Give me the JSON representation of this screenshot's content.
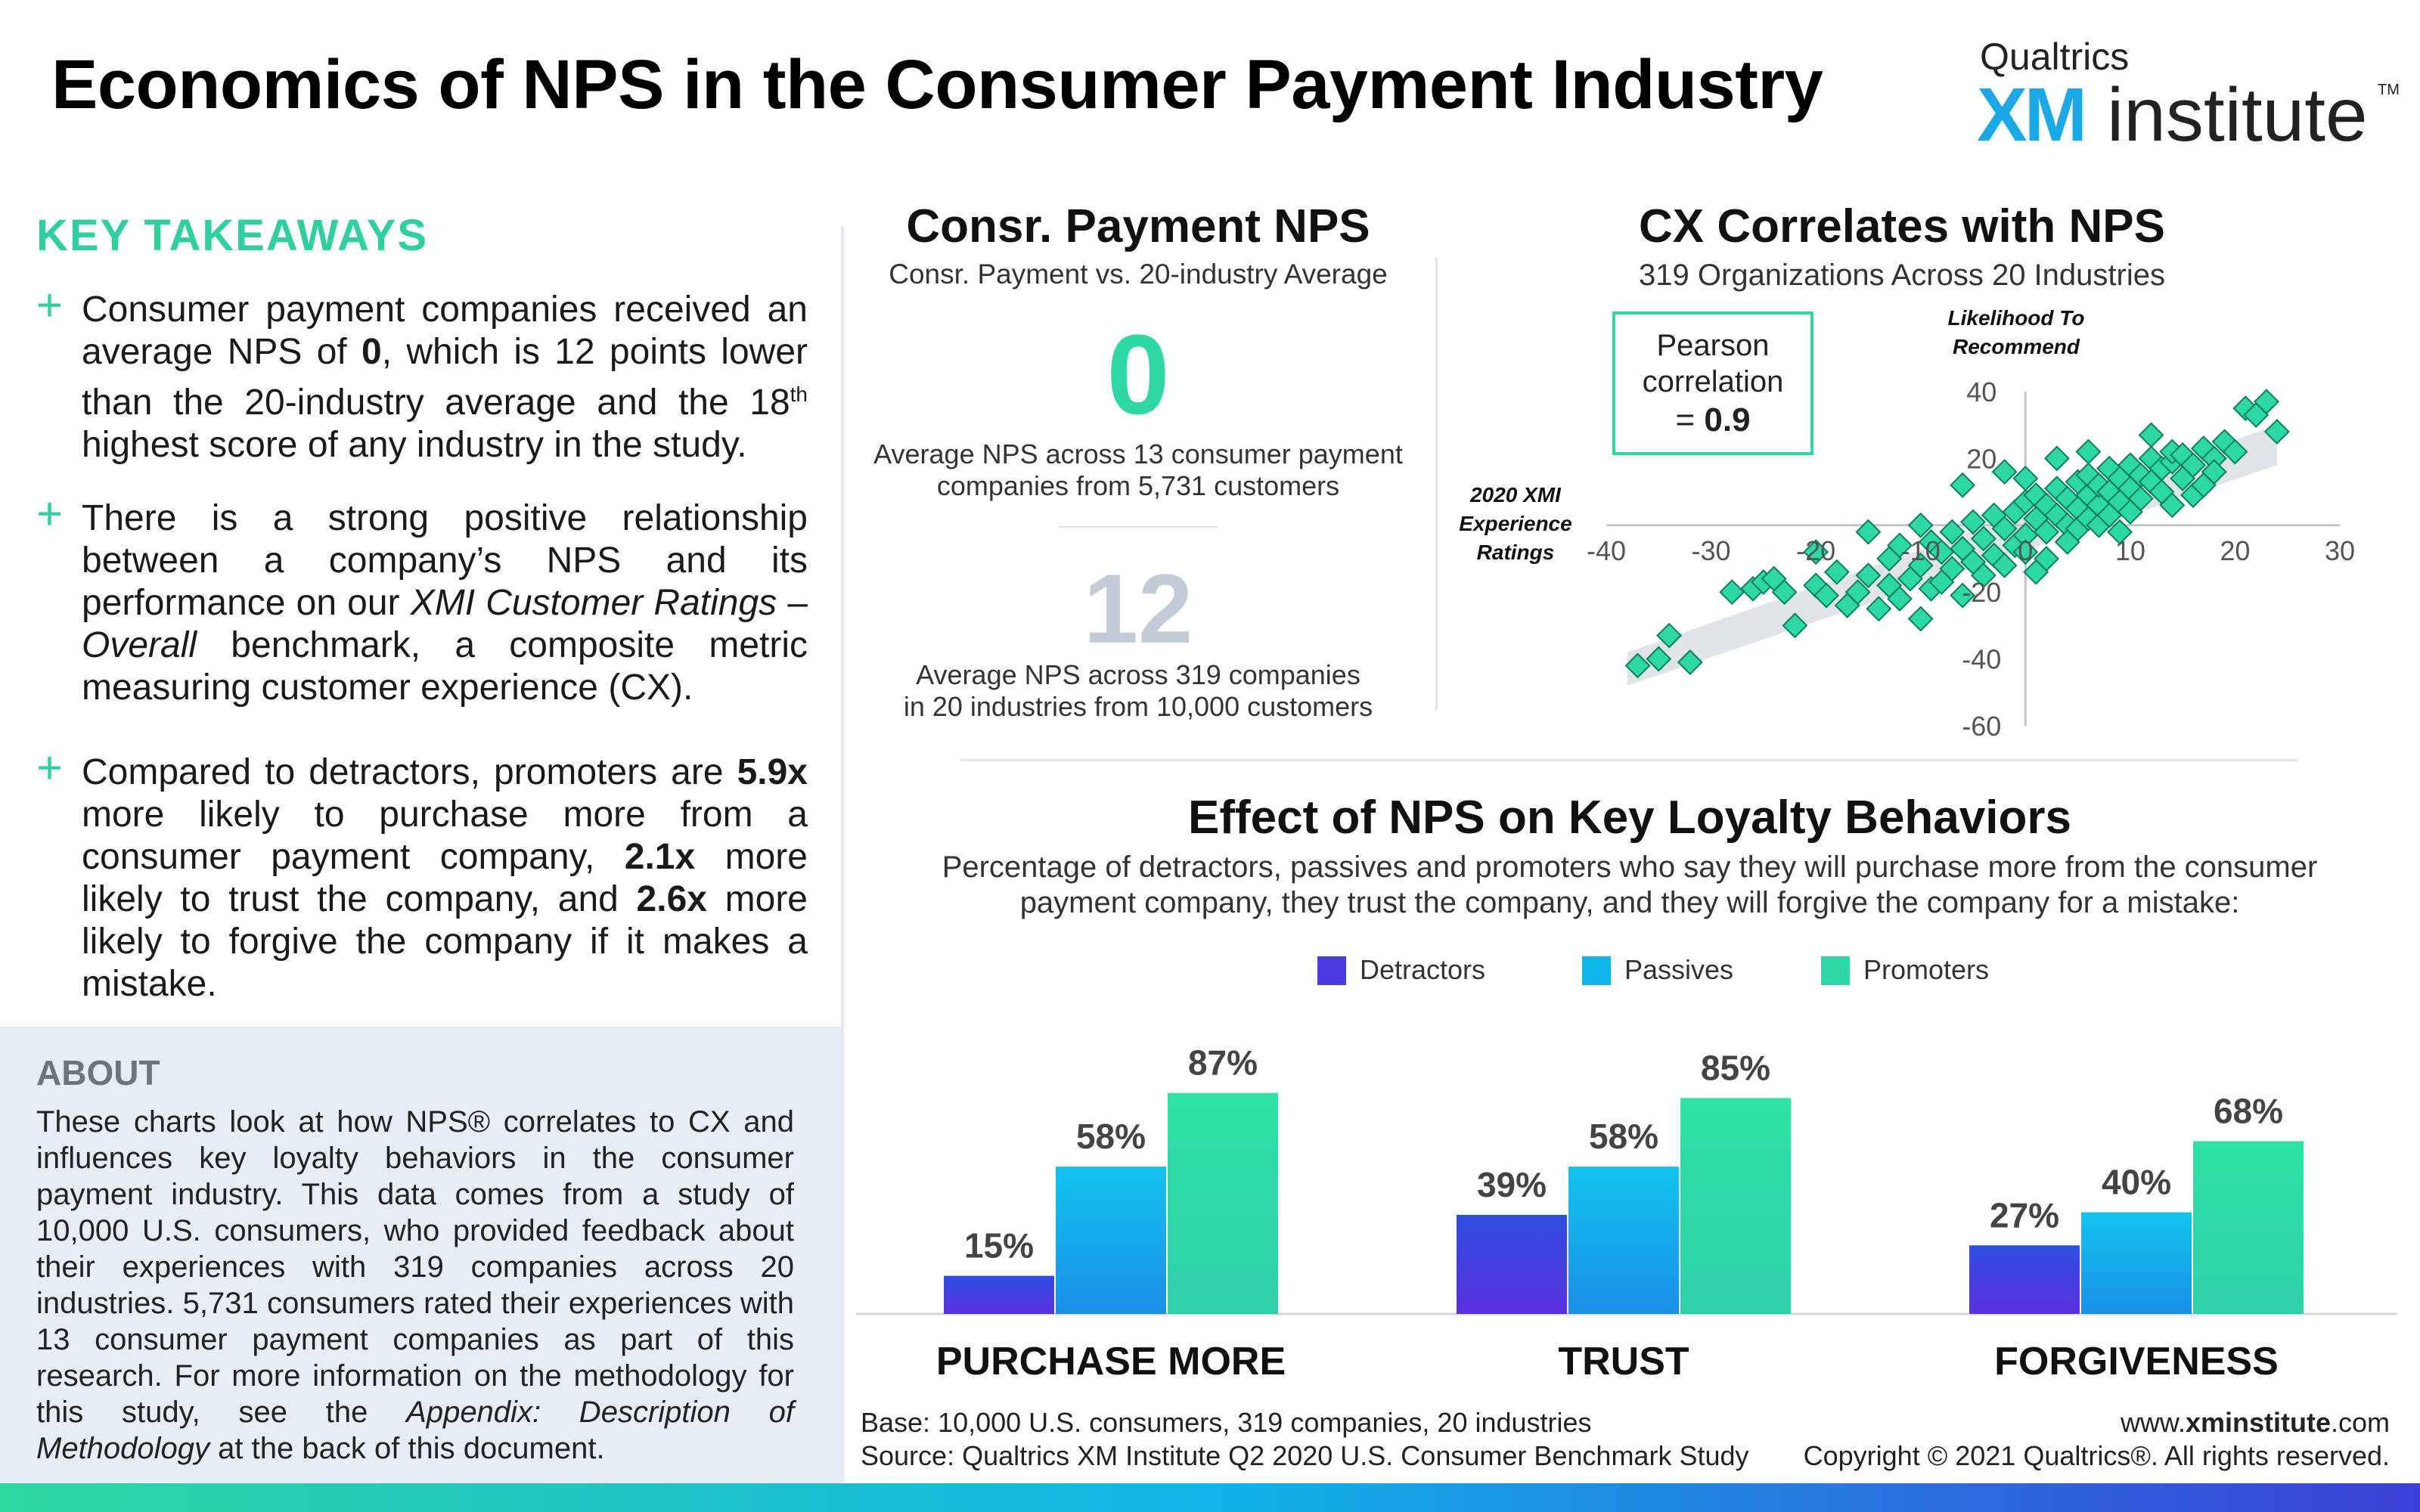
{
  "title": "Economics of NPS in the Consumer Payment Industry",
  "logo": {
    "company": "Qualtrics",
    "brand_xm": "XM",
    "brand_rest": "institute",
    "tm": "TM"
  },
  "key_takeaways": {
    "title": "KEY TAKEAWAYS",
    "bullet_symbol": "+",
    "bullets": [
      {
        "text_a": "Consumer payment companies received an average NPS of ",
        "bold_a": "0",
        "text_b": ", which is 12 points lower than the 20-industry average and the 18",
        "sup": "th",
        "text_c": " highest score of any industry in the study."
      },
      {
        "text_a": "There is a strong positive relationship between a company’s NPS and its performance on our ",
        "italic_a": "XMI Customer Ratings – Overall",
        "text_b": " benchmark, a composite metric measuring customer experience (CX)."
      },
      {
        "text_a": "Compared to detractors, promoters are ",
        "bold_a": "5.9x",
        "text_b": " more likely to purchase more from a consumer payment company, ",
        "bold_b": "2.1x",
        "text_c": " more likely to trust the company, and ",
        "bold_c": "2.6x",
        "text_d": " more likely to forgive the company if it makes a mistake."
      }
    ]
  },
  "about": {
    "title": "ABOUT",
    "text_a": "These charts look at how NPS® correlates to CX and influences key loyalty behaviors in the consumer payment industry. This data comes from a study of 10,000 U.S. consumers, who provided feedback about their experiences with 319 companies across 20 industries. 5,731 consumers rated their experiences with 13 consumer payment companies as part of this research. For more information on the methodology for this study, see the ",
    "italic": "Appendix: Description of Methodology",
    "text_b": " at the back of this document."
  },
  "nps_panel": {
    "title": "Consr. Payment NPS",
    "subtitle": "Consr. Payment  vs. 20-industry Average",
    "industry_value": "0",
    "industry_desc_1": "Average NPS across 13 consumer payment",
    "industry_desc_2": "companies from 5,731 customers",
    "average_value": "12",
    "average_desc_1": "Average NPS across 319 companies",
    "average_desc_2": "in 20 industries from 10,000 customers"
  },
  "colors": {
    "detractors": "#4a3ce0",
    "passives": "#10b5ea",
    "promoters": "#2ed8a4",
    "accent": "#2fcfa0"
  },
  "chart_data": [
    {
      "type": "scatter",
      "title": "CX Correlates with NPS",
      "subtitle": "319 Organizations Across 20 Industries",
      "xlabel": "2020 XMI Experience Ratings",
      "ylabel": "Likelihood To Recommend",
      "xlabel_lines": [
        "2020 XMI",
        "Experience",
        "Ratings"
      ],
      "ylabel_lines": [
        "Likelihood To",
        "Recommend"
      ],
      "xlim": [
        -40,
        30
      ],
      "ylim": [
        -60,
        40
      ],
      "xticks": [
        -40,
        -30,
        -20,
        -10,
        0,
        10,
        20,
        30
      ],
      "yticks": [
        -60,
        -40,
        -20,
        0,
        20,
        40
      ],
      "annotation_lines": [
        "Pearson",
        "correlation"
      ],
      "annotation_eq": "= ",
      "annotation_value": "0.9",
      "points": [
        [
          -37,
          -42
        ],
        [
          -35,
          -40
        ],
        [
          -34,
          -33
        ],
        [
          -32,
          -41
        ],
        [
          -26,
          -19
        ],
        [
          -25,
          -17
        ],
        [
          -24,
          -16
        ],
        [
          -23,
          -20
        ],
        [
          -22,
          -30
        ],
        [
          -20,
          -18
        ],
        [
          -19,
          -21
        ],
        [
          -18,
          -14
        ],
        [
          -17,
          -24
        ],
        [
          -16,
          -20
        ],
        [
          -15,
          -15
        ],
        [
          -14,
          -25
        ],
        [
          -13,
          -18
        ],
        [
          -13,
          -10
        ],
        [
          -12,
          -22
        ],
        [
          -12,
          -6
        ],
        [
          -11,
          -16
        ],
        [
          -10,
          -28
        ],
        [
          -10,
          -12
        ],
        [
          -9,
          -19
        ],
        [
          -9,
          -5
        ],
        [
          -8,
          -8
        ],
        [
          -8,
          -17
        ],
        [
          -7,
          -2
        ],
        [
          -7,
          -13
        ],
        [
          -6,
          -21
        ],
        [
          -6,
          -7
        ],
        [
          -5,
          1
        ],
        [
          -5,
          -11
        ],
        [
          -4,
          -4
        ],
        [
          -4,
          -15
        ],
        [
          -3,
          3
        ],
        [
          -3,
          -9
        ],
        [
          -2,
          -1
        ],
        [
          -2,
          -12
        ],
        [
          -1,
          4
        ],
        [
          -1,
          -6
        ],
        [
          0,
          -3
        ],
        [
          0,
          7
        ],
        [
          0,
          -8
        ],
        [
          1,
          2
        ],
        [
          1,
          9
        ],
        [
          2,
          -2
        ],
        [
          2,
          6
        ],
        [
          2,
          -10
        ],
        [
          3,
          3
        ],
        [
          3,
          11
        ],
        [
          4,
          0
        ],
        [
          4,
          8
        ],
        [
          4,
          -5
        ],
        [
          5,
          5
        ],
        [
          5,
          13
        ],
        [
          5,
          -1
        ],
        [
          6,
          9
        ],
        [
          6,
          2
        ],
        [
          6,
          15
        ],
        [
          7,
          6
        ],
        [
          7,
          12
        ],
        [
          7,
          0
        ],
        [
          8,
          10
        ],
        [
          8,
          3
        ],
        [
          8,
          17
        ],
        [
          9,
          14
        ],
        [
          9,
          7
        ],
        [
          10,
          11
        ],
        [
          10,
          18
        ],
        [
          10,
          4
        ],
        [
          11,
          15
        ],
        [
          11,
          8
        ],
        [
          12,
          13
        ],
        [
          12,
          20
        ],
        [
          13,
          17
        ],
        [
          13,
          10
        ],
        [
          14,
          19
        ],
        [
          14,
          22
        ],
        [
          15,
          14
        ],
        [
          15,
          21
        ],
        [
          16,
          18
        ],
        [
          16,
          9
        ],
        [
          17,
          23
        ],
        [
          18,
          20
        ],
        [
          18,
          16
        ],
        [
          19,
          25
        ],
        [
          20,
          22
        ],
        [
          21,
          35
        ],
        [
          22,
          33
        ],
        [
          23,
          37
        ],
        [
          24,
          28
        ],
        [
          -6,
          12
        ],
        [
          -2,
          16
        ],
        [
          3,
          20
        ],
        [
          1,
          -14
        ],
        [
          -15,
          -2
        ],
        [
          9,
          -2
        ],
        [
          14,
          6
        ],
        [
          -20,
          -8
        ],
        [
          -28,
          -20
        ],
        [
          -10,
          0
        ],
        [
          0,
          14
        ],
        [
          6,
          22
        ],
        [
          12,
          27
        ],
        [
          17,
          12
        ]
      ]
    },
    {
      "type": "bar",
      "title": "Effect of NPS on Key Loyalty Behaviors",
      "subtitle_1": "Percentage of detractors, passives and promoters who say they will purchase more from the consumer",
      "subtitle_2": "payment company, they trust the company, and they will forgive the company for a mistake:",
      "categories": [
        "PURCHASE MORE",
        "TRUST",
        "FORGIVENESS"
      ],
      "series": [
        {
          "name": "Detractors",
          "values": [
            15,
            39,
            27
          ]
        },
        {
          "name": "Passives",
          "values": [
            58,
            58,
            40
          ]
        },
        {
          "name": "Promoters",
          "values": [
            87,
            85,
            68
          ]
        }
      ],
      "value_suffix": "%",
      "ylim": [
        0,
        100
      ],
      "legend": "top-center"
    }
  ],
  "footer": {
    "base": "Base: 10,000 U.S. consumers, 319 companies, 20 industries",
    "source": "Source: Qualtrics XM Institute Q2 2020 U.S. Consumer Benchmark Study",
    "url_pre": "www.",
    "url_bold": "xminstitute",
    "url_post": ".com",
    "copyright": "Copyright © 2021 Qualtrics®. All rights reserved."
  }
}
